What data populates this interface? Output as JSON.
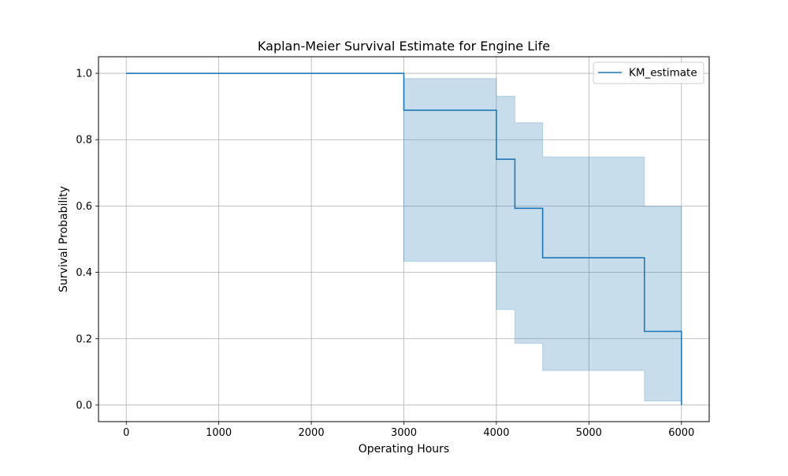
{
  "chart_data": {
    "type": "line",
    "title": "Kaplan-Meier Survival Estimate for Engine Life",
    "xlabel": "Operating Hours",
    "ylabel": "Survival Probability",
    "xlim": [
      -300,
      6300
    ],
    "ylim": [
      -0.05,
      1.05
    ],
    "xticks": [
      0,
      1000,
      2000,
      3000,
      4000,
      5000,
      6000
    ],
    "yticks": [
      0.0,
      0.2,
      0.4,
      0.6,
      0.8,
      1.0
    ],
    "xtick_labels": [
      "0",
      "1000",
      "2000",
      "3000",
      "4000",
      "5000",
      "6000"
    ],
    "ytick_labels": [
      "0.0",
      "0.2",
      "0.4",
      "0.6",
      "0.8",
      "1.0"
    ],
    "grid": true,
    "legend_position": "top-right",
    "series": [
      {
        "name": "KM_estimate",
        "step": "post",
        "color": "#1f77b4",
        "x": [
          0,
          3000,
          4000,
          4200,
          4500,
          5600,
          6000
        ],
        "y": [
          1.0,
          0.889,
          0.741,
          0.593,
          0.444,
          0.222,
          0.0
        ],
        "ci_lower": [
          1.0,
          0.433,
          0.288,
          0.186,
          0.104,
          0.012,
          0.012
        ],
        "ci_upper": [
          1.0,
          0.984,
          0.931,
          0.851,
          0.748,
          0.599,
          0.599
        ],
        "ci_color": "#1f77b4",
        "ci_opacity": 0.25
      }
    ]
  }
}
